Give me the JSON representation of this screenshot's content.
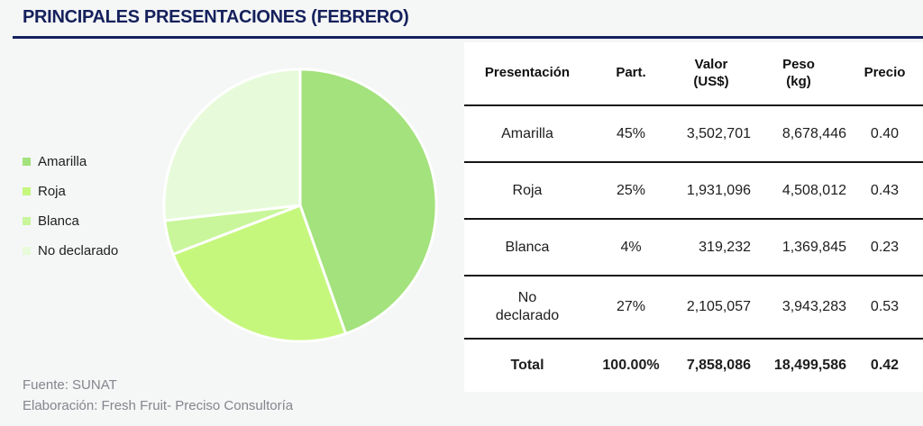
{
  "page": {
    "title": "PRINCIPALES PRESENTACIONES (FEBRERO)",
    "background_color": "#f5f6f6",
    "accent_color": "#15215c",
    "panel_color": "#ffffff"
  },
  "legend": {
    "items": [
      {
        "label": "Amarilla",
        "color": "#a3e27c"
      },
      {
        "label": "Roja",
        "color": "#c6f77d"
      },
      {
        "label": "Blanca",
        "color": "#c9f69b"
      },
      {
        "label": "No declarado",
        "color": "#e7fbda"
      }
    ]
  },
  "table": {
    "headers": [
      "Presentación",
      "Part.",
      "Valor\n(US$)",
      "Peso\n(kg)",
      "Precio"
    ],
    "rows": [
      [
        "Amarilla",
        "45%",
        "3,502,701",
        "8,678,446",
        "0.40"
      ],
      [
        "Roja",
        "25%",
        "1,931,096",
        "4,508,012",
        "0.43"
      ],
      [
        "Blanca",
        "4%",
        "319,232",
        "1,369,845",
        "0.23"
      ],
      [
        "No declarado",
        "27%",
        "2,105,057",
        "3,943,283",
        "0.53"
      ]
    ],
    "total_row": [
      "Total",
      "100.00%",
      "7,858,086",
      "18,499,586",
      "0.42"
    ]
  },
  "chart_data": {
    "type": "pie",
    "title": "PRINCIPALES PRESENTACIONES (FEBRERO)",
    "categories": [
      "Amarilla",
      "Roja",
      "Blanca",
      "No declarado"
    ],
    "values": [
      3502701,
      1931096,
      319232,
      2105057
    ],
    "share_pct": [
      45,
      25,
      4,
      27
    ],
    "weights_kg": [
      8678446,
      4508012,
      1369845,
      3943283
    ],
    "prices_usd_per_kg": [
      0.4,
      0.43,
      0.23,
      0.53
    ],
    "total": {
      "share_pct": "100.00%",
      "value_usd": 7858086,
      "weight_kg": 18499586,
      "price": 0.42
    },
    "colors": [
      "#a3e27c",
      "#c6f77d",
      "#c9f69b",
      "#e7fbda"
    ],
    "start_angle_deg": 0,
    "direction": "clockwise",
    "slice_border_color": "#ffffff",
    "legend_position": "left"
  },
  "footer": {
    "source": "Fuente: SUNAT",
    "elaboration": "Elaboración: Fresh Fruit- Preciso Consultoría"
  }
}
